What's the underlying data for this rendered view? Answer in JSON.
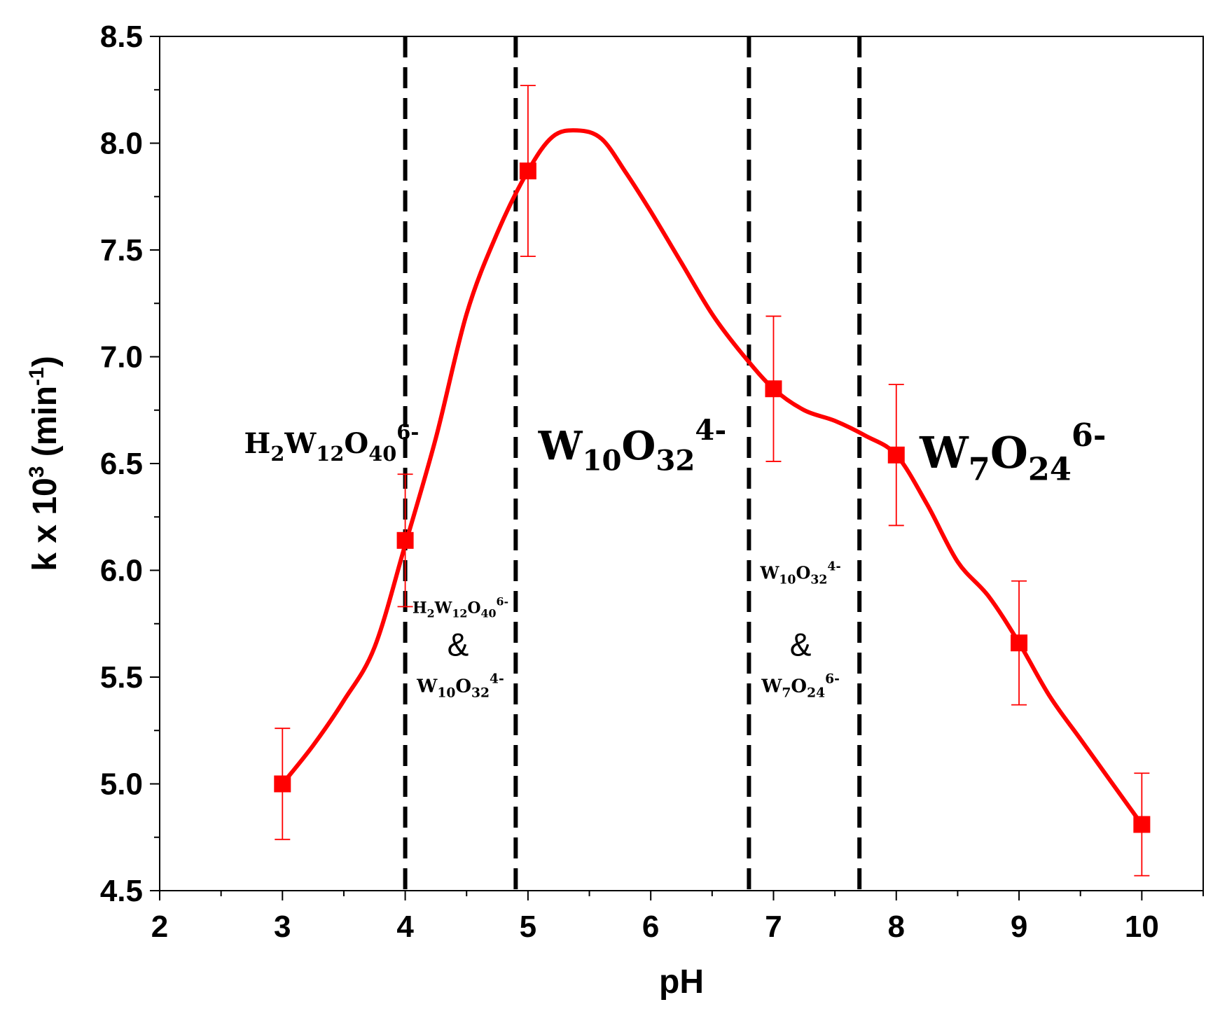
{
  "chart_data": {
    "type": "line",
    "xlabel": "pH",
    "ylabel": "k x 10",
    "ylabel_sup": "3",
    "ylabel_unit_open": " (min",
    "ylabel_unit_sup": "-1",
    "ylabel_unit_close": ")",
    "xlim": [
      2,
      10.5
    ],
    "ylim": [
      4.5,
      8.5
    ],
    "x_ticks": [
      2,
      3,
      4,
      5,
      6,
      7,
      8,
      9,
      10
    ],
    "x_tick_labels": [
      "2",
      "3",
      "4",
      "5",
      "6",
      "7",
      "8",
      "9",
      "10"
    ],
    "y_ticks": [
      4.5,
      5.0,
      5.5,
      6.0,
      6.5,
      7.0,
      7.5,
      8.0,
      8.5
    ],
    "y_tick_labels": [
      "4.5",
      "5.0",
      "5.5",
      "6.0",
      "6.5",
      "7.0",
      "7.5",
      "8.0",
      "8.5"
    ],
    "series": [
      {
        "color": "#ff0000",
        "x": [
          3,
          4,
          5,
          7,
          8,
          9,
          10
        ],
        "y": [
          5.0,
          6.14,
          7.87,
          6.85,
          6.54,
          5.66,
          4.81
        ],
        "err": [
          0.26,
          0.31,
          0.4,
          0.34,
          0.33,
          0.29,
          0.24
        ],
        "smooth_curve": [
          [
            3.0,
            5.0
          ],
          [
            3.25,
            5.18
          ],
          [
            3.5,
            5.39
          ],
          [
            3.75,
            5.64
          ],
          [
            4.0,
            6.12
          ],
          [
            4.25,
            6.62
          ],
          [
            4.5,
            7.2
          ],
          [
            4.75,
            7.58
          ],
          [
            5.0,
            7.87
          ],
          [
            5.2,
            8.03
          ],
          [
            5.4,
            8.06
          ],
          [
            5.6,
            8.02
          ],
          [
            5.8,
            7.86
          ],
          [
            6.0,
            7.68
          ],
          [
            6.25,
            7.44
          ],
          [
            6.5,
            7.2
          ],
          [
            6.75,
            7.01
          ],
          [
            7.0,
            6.85
          ],
          [
            7.25,
            6.75
          ],
          [
            7.5,
            6.7
          ],
          [
            7.75,
            6.63
          ],
          [
            8.0,
            6.54
          ],
          [
            8.25,
            6.31
          ],
          [
            8.5,
            6.04
          ],
          [
            8.75,
            5.88
          ],
          [
            9.0,
            5.66
          ],
          [
            9.25,
            5.41
          ],
          [
            9.5,
            5.21
          ],
          [
            9.75,
            5.01
          ],
          [
            10.0,
            4.81
          ]
        ]
      }
    ],
    "region_boundaries_ph": [
      4.0,
      4.9,
      6.8,
      7.7
    ],
    "annotations": [
      {
        "name": "species-h2w12o40",
        "x": 3.4,
        "y": 6.55,
        "size": 40,
        "parts": [
          {
            "t": "H",
            "s": "n"
          },
          {
            "t": "2",
            "s": "sub"
          },
          {
            "t": "W",
            "s": "n"
          },
          {
            "t": "12",
            "s": "sub"
          },
          {
            "t": "O",
            "s": "n"
          },
          {
            "t": "40",
            "s": "sub"
          },
          {
            "t": "6-",
            "s": "sup"
          }
        ]
      },
      {
        "name": "species-w10o32",
        "x": 5.85,
        "y": 6.52,
        "size": 56,
        "parts": [
          {
            "t": "W",
            "s": "n"
          },
          {
            "t": "10",
            "s": "sub"
          },
          {
            "t": "O",
            "s": "n"
          },
          {
            "t": "32",
            "s": "sub"
          },
          {
            "t": "4-",
            "s": "sup"
          }
        ]
      },
      {
        "name": "species-w7o24",
        "x": 8.95,
        "y": 6.48,
        "size": 62,
        "parts": [
          {
            "t": "W",
            "s": "n"
          },
          {
            "t": "7",
            "s": "sub"
          },
          {
            "t": "O",
            "s": "n"
          },
          {
            "t": "24",
            "s": "sub"
          },
          {
            "t": "6-",
            "s": "sup"
          }
        ]
      },
      {
        "name": "mix1-h2w12o40",
        "x": 4.45,
        "y": 5.8,
        "size": 22,
        "parts": [
          {
            "t": "H",
            "s": "n"
          },
          {
            "t": "2",
            "s": "sub"
          },
          {
            "t": "W",
            "s": "n"
          },
          {
            "t": "12",
            "s": "sub"
          },
          {
            "t": "O",
            "s": "n"
          },
          {
            "t": "40",
            "s": "sub"
          },
          {
            "t": "6-",
            "s": "sup"
          }
        ]
      },
      {
        "name": "mix1-w10o32",
        "x": 4.45,
        "y": 5.43,
        "size": 26,
        "parts": [
          {
            "t": "W",
            "s": "n"
          },
          {
            "t": "10",
            "s": "sub"
          },
          {
            "t": "O",
            "s": "n"
          },
          {
            "t": "32",
            "s": "sub"
          },
          {
            "t": "4-",
            "s": "sup"
          }
        ]
      },
      {
        "name": "mix2-w10o32",
        "x": 7.22,
        "y": 5.96,
        "size": 24,
        "parts": [
          {
            "t": "W",
            "s": "n"
          },
          {
            "t": "10",
            "s": "sub"
          },
          {
            "t": "O",
            "s": "n"
          },
          {
            "t": "32",
            "s": "sub"
          },
          {
            "t": "4-",
            "s": "sup"
          }
        ]
      },
      {
        "name": "mix2-w7o24",
        "x": 7.22,
        "y": 5.43,
        "size": 26,
        "parts": [
          {
            "t": "W",
            "s": "n"
          },
          {
            "t": "7",
            "s": "sub"
          },
          {
            "t": "O",
            "s": "n"
          },
          {
            "t": "24",
            "s": "sub"
          },
          {
            "t": "6-",
            "s": "sup"
          }
        ]
      }
    ],
    "ampersands": [
      {
        "name": "mix1-ampersand",
        "x": 4.43,
        "y": 5.6,
        "text": "&"
      },
      {
        "name": "mix2-ampersand",
        "x": 7.22,
        "y": 5.6,
        "text": "&"
      }
    ]
  }
}
